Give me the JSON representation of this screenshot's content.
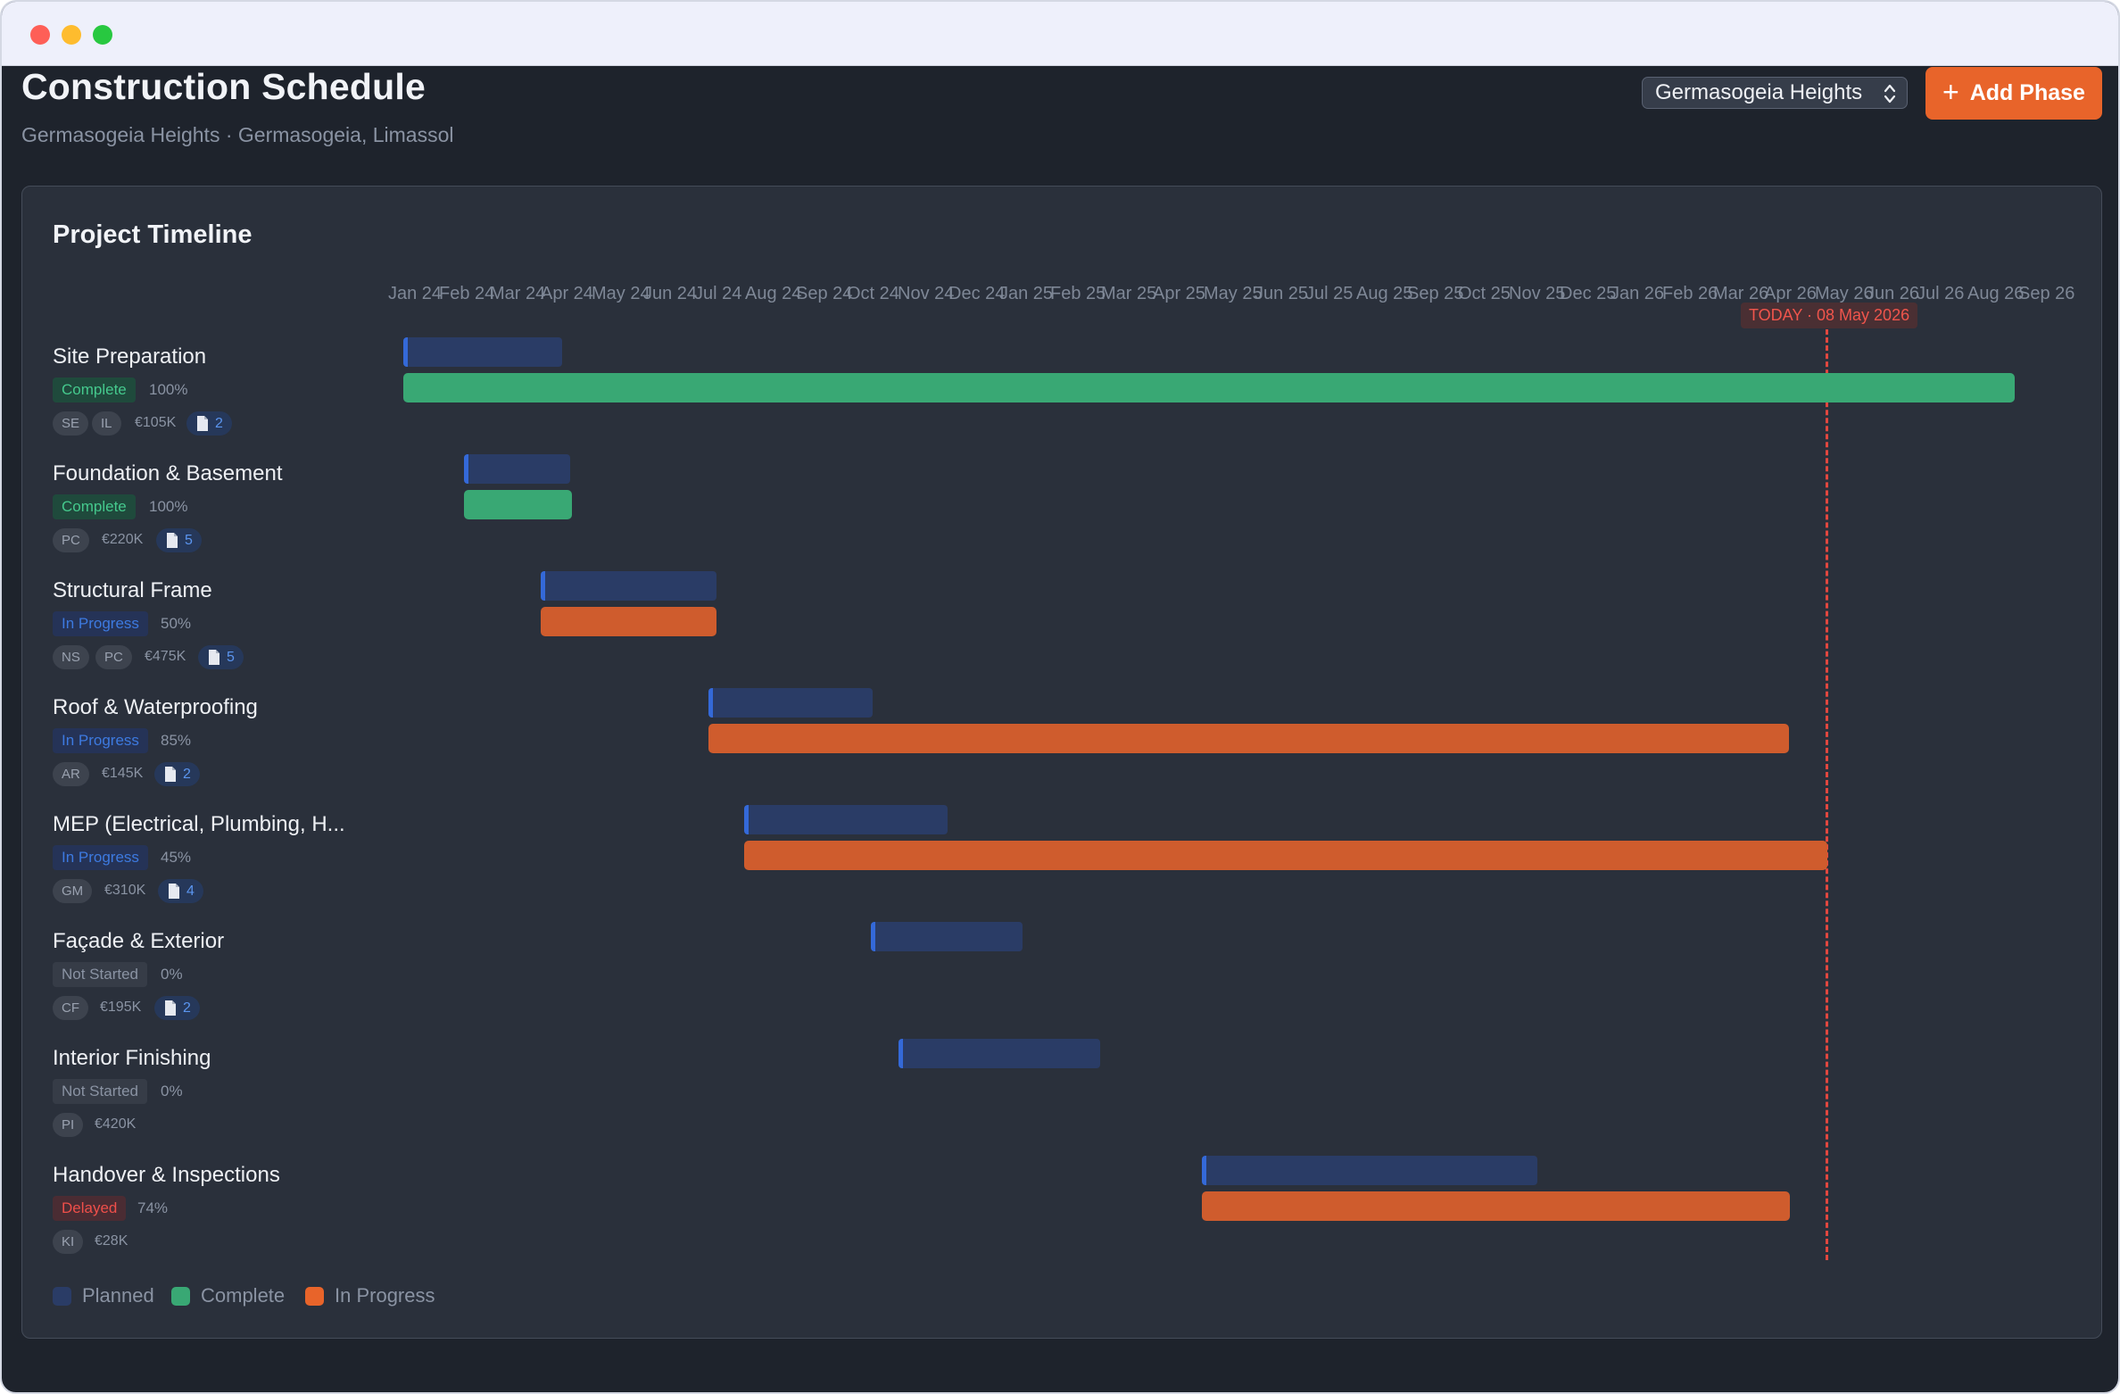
{
  "header": {
    "title": "Construction Schedule",
    "subtitle": "Germasogeia Heights · Germasogeia, Limassol",
    "project_select": "Germasogeia Heights",
    "add_button": "Add Phase",
    "add_icon": "plus-icon"
  },
  "panel": {
    "title": "Project Timeline",
    "months": [
      "Jan 24",
      "Feb 24",
      "Mar 24",
      "Apr 24",
      "May 24",
      "Jun 24",
      "Jul 24",
      "Aug 24",
      "Sep 24",
      "Oct 24",
      "Nov 24",
      "Dec 24",
      "Jan 25",
      "Feb 25",
      "Mar 25",
      "Apr 25",
      "May 25",
      "Jun 25",
      "Jul 25",
      "Aug 25",
      "Sep 25",
      "Oct 25",
      "Nov 25",
      "Dec 25",
      "Jan 26",
      "Feb 26",
      "Mar 26",
      "Apr 26",
      "May 26",
      "Jun 26",
      "Jul 26",
      "Aug 26",
      "Sep 26"
    ],
    "today_label": "TODAY · 08 May 2026"
  },
  "phases": [
    {
      "name": "Site Preparation",
      "status": "Complete",
      "percent": "100%",
      "assignees": [
        "SE",
        "IL"
      ],
      "budget": "€105K",
      "docs": "2"
    },
    {
      "name": "Foundation & Basement",
      "status": "Complete",
      "percent": "100%",
      "assignees": [
        "PC"
      ],
      "budget": "€220K",
      "docs": "5"
    },
    {
      "name": "Structural Frame",
      "status": "In Progress",
      "percent": "50%",
      "assignees": [
        "NS",
        "PC"
      ],
      "budget": "€475K",
      "docs": "5"
    },
    {
      "name": "Roof & Waterproofing",
      "status": "In Progress",
      "percent": "85%",
      "assignees": [
        "AR"
      ],
      "budget": "€145K",
      "docs": "2"
    },
    {
      "name": "MEP (Electrical, Plumbing, H...",
      "status": "In Progress",
      "percent": "45%",
      "assignees": [
        "GM"
      ],
      "budget": "€310K",
      "docs": "4"
    },
    {
      "name": "Façade & Exterior",
      "status": "Not Started",
      "percent": "0%",
      "assignees": [
        "CF"
      ],
      "budget": "€195K",
      "docs": "2"
    },
    {
      "name": "Interior Finishing",
      "status": "Not Started",
      "percent": "0%",
      "assignees": [
        "PI"
      ],
      "budget": "€420K",
      "docs": ""
    },
    {
      "name": "Handover & Inspections",
      "status": "Delayed",
      "percent": "74%",
      "assignees": [
        "KI"
      ],
      "budget": "€28K",
      "docs": ""
    }
  ],
  "legend": {
    "planned": "Planned",
    "complete": "Complete",
    "progress": "In Progress"
  },
  "colors": {
    "accent": "#e8642a",
    "planned": "#2a3c66",
    "complete": "#39a874",
    "in_progress": "#cf5c2d",
    "today": "#e2473f"
  }
}
